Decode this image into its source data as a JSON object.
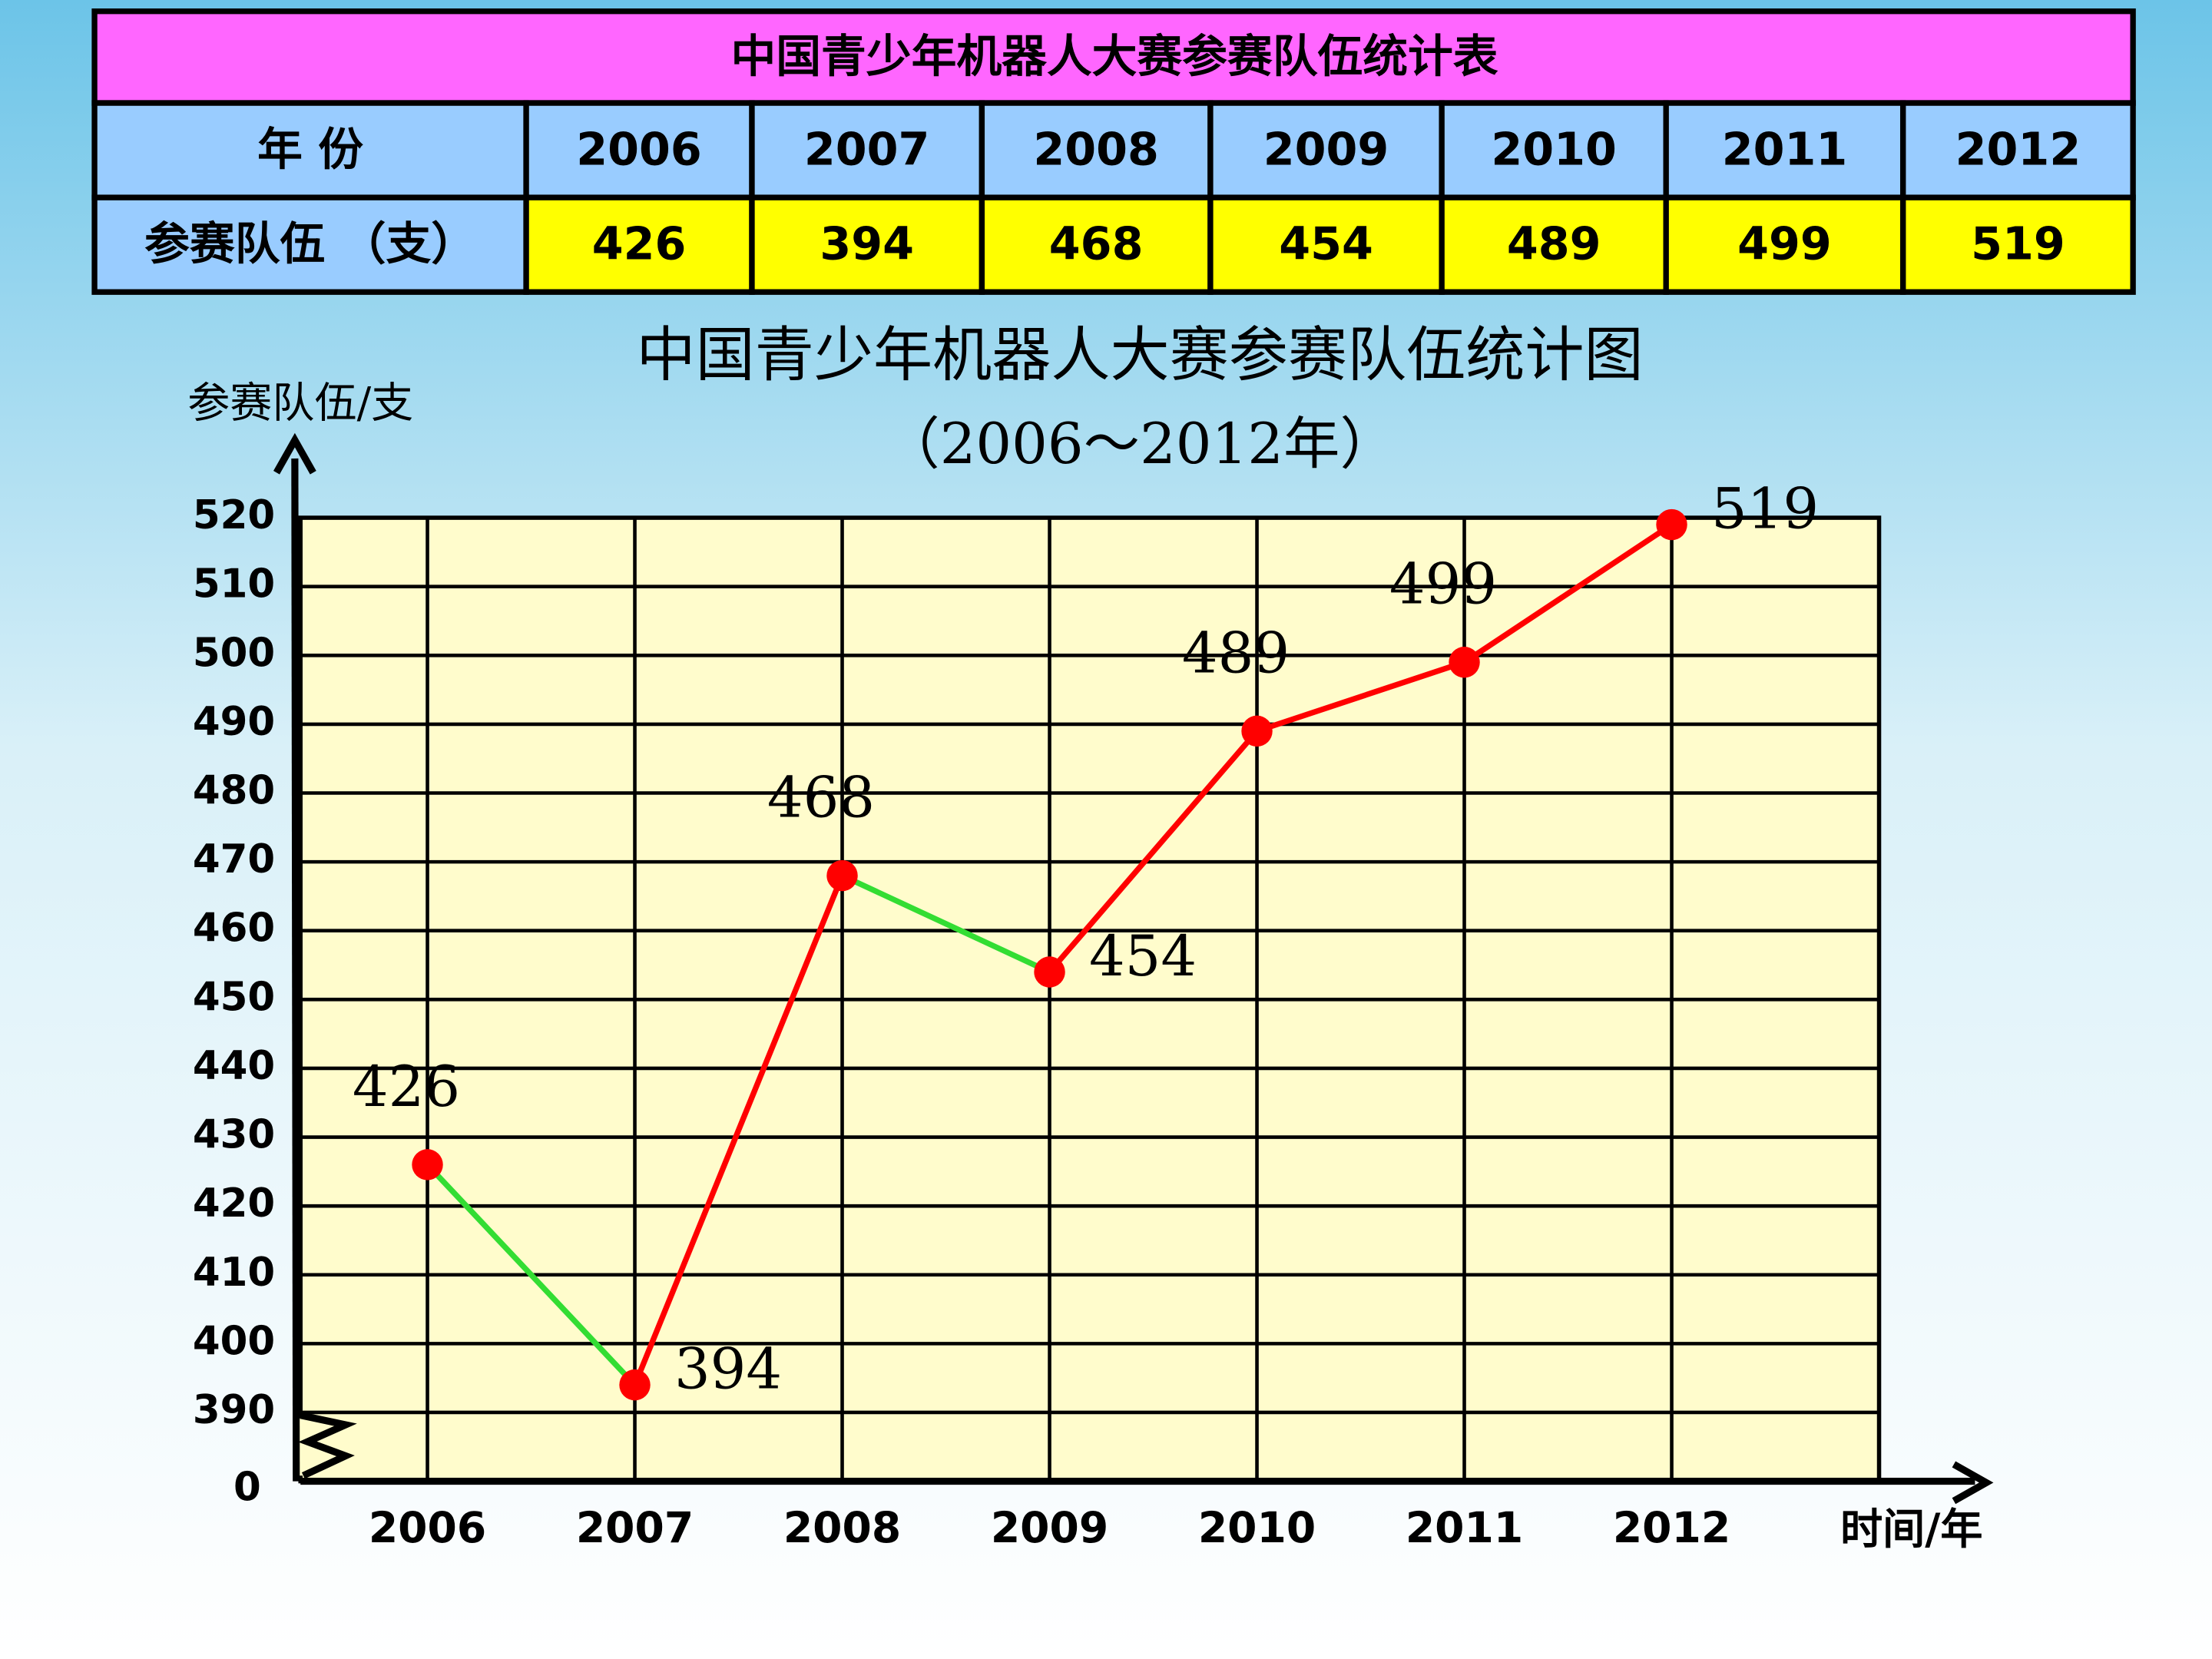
{
  "table": {
    "title": "中国青少年机器人大赛参赛队伍统计表",
    "rows": [
      [
        "年 份",
        "2006",
        "2007",
        "2008",
        "2009",
        "2010",
        "2011",
        "2012"
      ],
      [
        "参赛队伍 （支）",
        "426",
        "394",
        "468",
        "454",
        "489",
        "499",
        "519"
      ]
    ]
  },
  "chart_data": {
    "type": "line",
    "title": "中国青少年机器人大赛参赛队伍统计图",
    "subtitle": "（2006～2012年）",
    "y_label": "参赛队伍/支",
    "x_label": "时间/年",
    "axis_break_label": "0",
    "categories": [
      "2006",
      "2007",
      "2008",
      "2009",
      "2010",
      "2011",
      "2012"
    ],
    "series": [
      {
        "name": "参赛队伍",
        "color": "#ff0000",
        "values": [
          426,
          394,
          468,
          454,
          489,
          499,
          519
        ]
      }
    ],
    "segment_colors": [
      "#33dd33",
      "#ff0000",
      "#33dd33",
      "#ff0000",
      "#ff0000",
      "#ff0000"
    ],
    "marker_color": "#ff0000",
    "ylim": [
      380,
      520
    ],
    "yticks": [
      390,
      400,
      410,
      420,
      430,
      440,
      450,
      460,
      470,
      480,
      490,
      500,
      510,
      520
    ],
    "grid": true
  }
}
